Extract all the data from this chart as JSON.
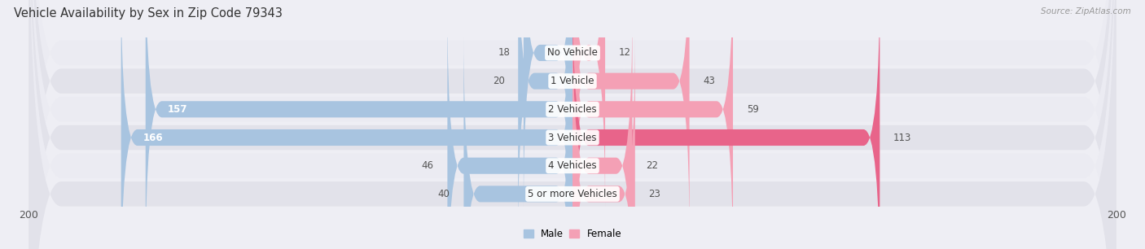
{
  "title": "Vehicle Availability by Sex in Zip Code 79343",
  "source": "Source: ZipAtlas.com",
  "categories": [
    "No Vehicle",
    "1 Vehicle",
    "2 Vehicles",
    "3 Vehicles",
    "4 Vehicles",
    "5 or more Vehicles"
  ],
  "male_values": [
    18,
    20,
    157,
    166,
    46,
    40
  ],
  "female_values": [
    12,
    43,
    59,
    113,
    22,
    23
  ],
  "male_color": "#a8c4e0",
  "female_color": "#f4a0b5",
  "female_color_dark": "#e8648a",
  "male_label": "Male",
  "female_label": "Female",
  "axis_limit": 200,
  "bg_color": "#eeeef4",
  "row_bg_color": "#e2e2ea",
  "row_bg_light": "#ebebf2",
  "title_fontsize": 10.5,
  "label_fontsize": 8.5,
  "tick_fontsize": 9,
  "value_fontsize": 8.5
}
